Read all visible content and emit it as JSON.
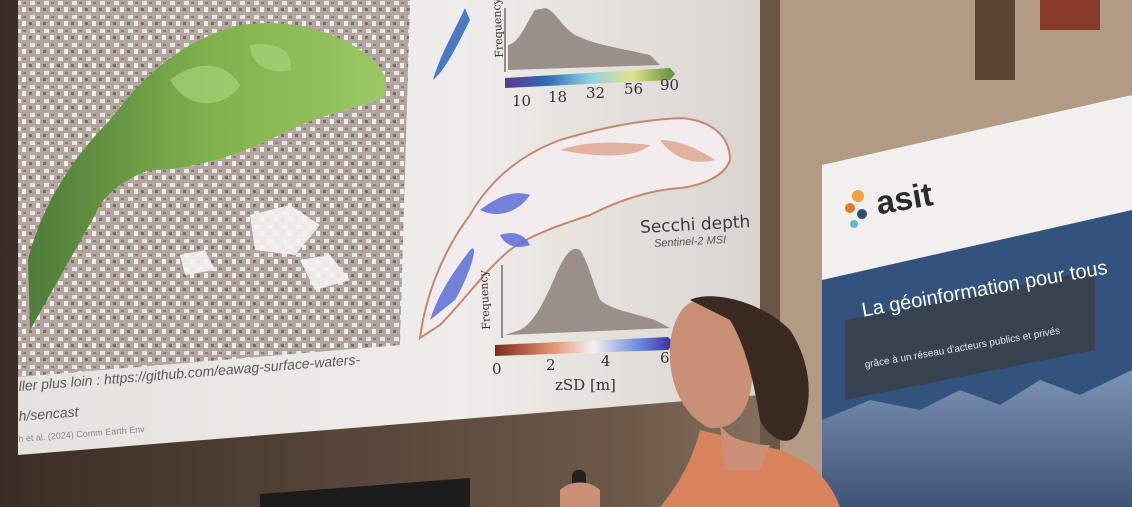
{
  "slide": {
    "legend_ticks_top": [
      "10",
      "18",
      "32",
      "56",
      "90"
    ],
    "hist_ylabel": "Frequency",
    "secchi_title": "Secchi depth",
    "secchi_subtitle": "Sentinel-2 MSI",
    "legend_ticks_bottom": [
      "0",
      "2",
      "4",
      "6"
    ],
    "xlabel_bottom": "zSD [m]",
    "link_line1": "ller plus loin : https://github.com/eawag-surface-waters-",
    "link_line2": "h/sencast",
    "citation": "h et al. (2024) Comm Earth Env"
  },
  "banner": {
    "brand": "asit",
    "tagline": "La géoinformation pour tous",
    "subline": "grâce à un réseau d'acteurs publics et privés"
  },
  "colors": {
    "lake_green": "#7fb04c",
    "brand_blue": "#2f4c74",
    "histogram_gray": "#9b8f89"
  }
}
